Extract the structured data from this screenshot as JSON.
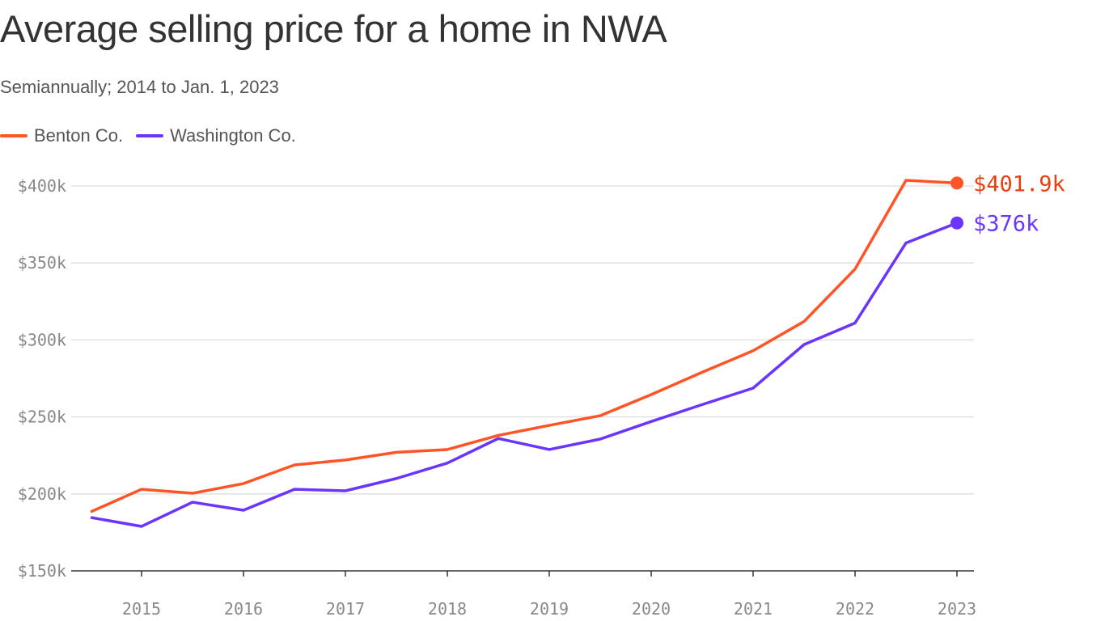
{
  "chart_data": {
    "type": "line",
    "title": "Average selling price for a home in NWA",
    "subtitle": "Semiannually; 2014 to Jan. 1, 2023",
    "xlabel": "",
    "ylabel": "",
    "x": [
      2014.5,
      2015,
      2015.5,
      2016,
      2016.5,
      2017,
      2017.5,
      2018,
      2018.5,
      2019,
      2019.5,
      2020,
      2020.5,
      2021,
      2021.5,
      2022,
      2022.5,
      2023
    ],
    "x_ticks": [
      "2015",
      "2016",
      "2017",
      "2018",
      "2019",
      "2020",
      "2021",
      "2022",
      "2023"
    ],
    "y_ticks": [
      "$150k",
      "$200k",
      "$250k",
      "$300k",
      "$350k",
      "$400k"
    ],
    "ylim": [
      150,
      400
    ],
    "y_unit": "thousands of dollars",
    "grid": true,
    "legend": "top-left",
    "series": [
      {
        "name": "Benton Co.",
        "color": "#ff5526",
        "label_color": "#e8400f",
        "end_label": "$401.9k",
        "values": [
          188.3,
          203,
          200.4,
          206.7,
          218.8,
          222,
          227,
          228.8,
          238,
          244.5,
          250.8,
          264.5,
          279,
          293,
          312,
          346,
          403.7,
          401.9
        ]
      },
      {
        "name": "Washington Co.",
        "color": "#6a35ff",
        "label_color": "#6a35ff",
        "end_label": "$376k",
        "values": [
          184.7,
          178.9,
          194.6,
          189.4,
          203,
          202,
          210,
          220,
          236,
          228.8,
          235.6,
          247,
          258,
          268.7,
          297,
          311,
          363,
          376
        ]
      }
    ]
  }
}
